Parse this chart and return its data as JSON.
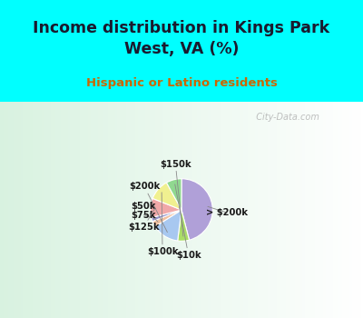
{
  "title": "Income distribution in Kings Park\nWest, VA (%)",
  "subtitle": "Hispanic or Latino residents",
  "background_cyan": "#00FFFF",
  "title_color": "#1a1a2e",
  "subtitle_color": "#cc6600",
  "watermark": "City-Data.com",
  "slices": [
    {
      "label": "> $200k",
      "value": 46,
      "color": "#b0a0d8"
    },
    {
      "label": "$150k",
      "value": 6,
      "color": "#aadd66"
    },
    {
      "label": "$200k",
      "value": 14,
      "color": "#a8c8f0"
    },
    {
      "label": "$50k",
      "value": 3,
      "color": "#f0c0a0"
    },
    {
      "label": "$75k",
      "value": 2,
      "color": "#9090cc"
    },
    {
      "label": "$125k",
      "value": 10,
      "color": "#f0a8a8"
    },
    {
      "label": "$100k",
      "value": 11,
      "color": "#f0f090"
    },
    {
      "label": "$10k",
      "value": 8,
      "color": "#90d890"
    }
  ]
}
